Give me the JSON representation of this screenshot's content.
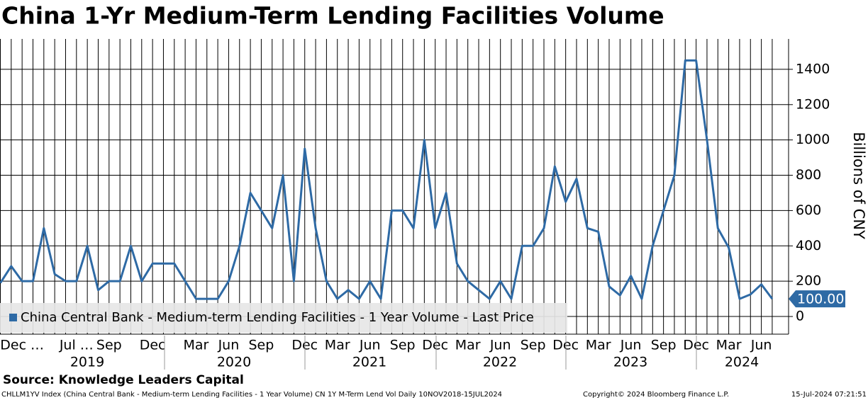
{
  "chart_data": {
    "type": "line",
    "title": "China 1-Yr Medium-Term Lending Facilities Volume",
    "y_label": "Billions of CNY",
    "source": "Source: Knowledge Leaders Capital",
    "footer_left": "CHLLM1YV Index (China Central Bank - Medium-term Lending Facilities - 1 Year Volume) CN 1Y M-Term Lend Vol  Daily 10NOV2018-15JUL2024",
    "footer_center": "Copyright© 2024 Bloomberg Finance L.P.",
    "footer_right": "15-Jul-2024 07:21:51",
    "categories": [
      null,
      null,
      "Dec …",
      null,
      null,
      null,
      null,
      "Jul …",
      null,
      null,
      "Sep",
      null,
      null,
      null,
      "Dec",
      null,
      null,
      null,
      "Mar",
      null,
      null,
      "Jun",
      null,
      null,
      "Sep",
      null,
      null,
      null,
      "Dec",
      null,
      null,
      "Mar",
      null,
      null,
      "Jun",
      null,
      null,
      "Sep",
      null,
      null,
      "Dec",
      null,
      null,
      "Mar",
      null,
      null,
      "Jun",
      null,
      null,
      "Sep",
      null,
      null,
      "Dec",
      null,
      null,
      "Mar",
      null,
      null,
      "Jun",
      null,
      null,
      "Sep",
      null,
      null,
      "Dec",
      null,
      null,
      "Mar",
      null,
      null,
      "Jun",
      null
    ],
    "years": [
      "2019",
      "2020",
      "2021",
      "2022",
      "2023",
      "2024"
    ],
    "series": [
      {
        "name": "China Central Bank - Medium-term Lending Facilities - 1 Year Volume - Last Price",
        "color": "#2e6aa5",
        "values": [
          190,
          285,
          200,
          200,
          500,
          240,
          200,
          200,
          400,
          150,
          200,
          200,
          400,
          200,
          300,
          300,
          300,
          200,
          100,
          100,
          100,
          200,
          400,
          700,
          600,
          500,
          800,
          200,
          950,
          500,
          200,
          100,
          150,
          100,
          200,
          100,
          600,
          600,
          500,
          1000,
          500,
          700,
          300,
          200,
          150,
          100,
          200,
          100,
          400,
          400,
          500,
          850,
          650,
          780,
          500,
          480,
          170,
          120,
          230,
          100,
          400,
          600,
          800,
          1450,
          1450,
          1000,
          500,
          390,
          100,
          125,
          182,
          100
        ],
        "last_value_label": "100.00"
      }
    ],
    "ylim": [
      -100,
      1572
    ],
    "yticks": [
      0,
      200,
      400,
      600,
      800,
      1000,
      1200,
      1400
    ],
    "grid": true
  }
}
